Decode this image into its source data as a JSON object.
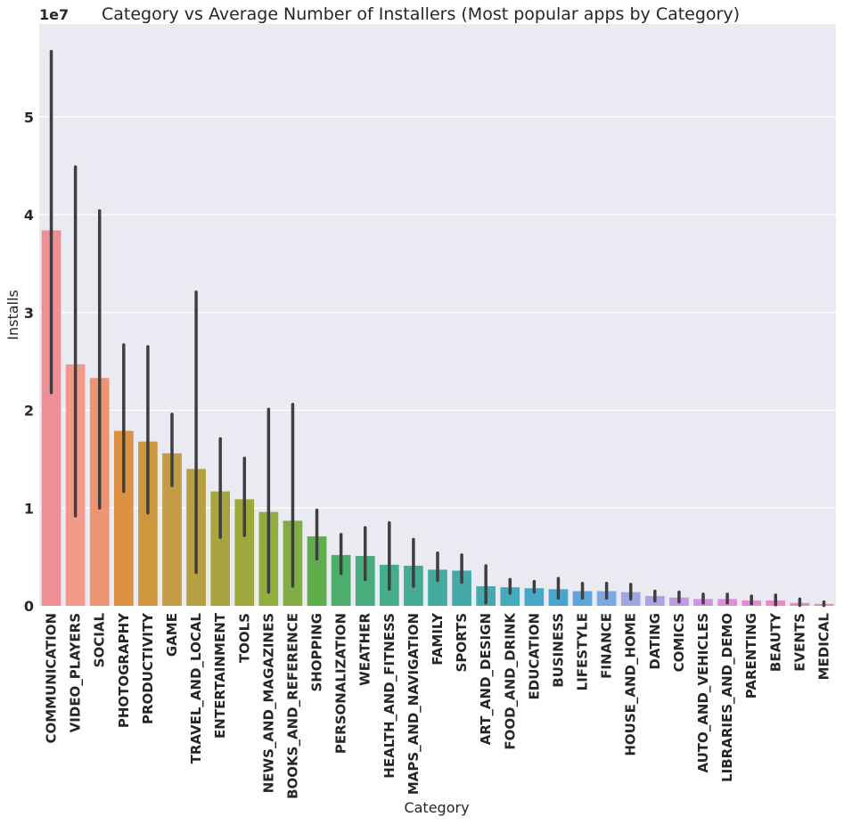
{
  "chart_data": {
    "type": "bar",
    "title": "Category vs Average Number of Installers (Most popular apps by Category)",
    "xlabel": "Category",
    "ylabel": "Installs",
    "y_multiplier_label": "1e7",
    "y_scale": 10000000,
    "ylim": [
      0,
      5.95
    ],
    "yticks": [
      0,
      1,
      2,
      3,
      4,
      5
    ],
    "grid": true,
    "legend": "none",
    "categories": [
      "COMMUNICATION",
      "VIDEO_PLAYERS",
      "SOCIAL",
      "PHOTOGRAPHY",
      "PRODUCTIVITY",
      "GAME",
      "TRAVEL_AND_LOCAL",
      "ENTERTAINMENT",
      "TOOLS",
      "NEWS_AND_MAGAZINES",
      "BOOKS_AND_REFERENCE",
      "SHOPPING",
      "PERSONALIZATION",
      "WEATHER",
      "HEALTH_AND_FITNESS",
      "MAPS_AND_NAVIGATION",
      "FAMILY",
      "SPORTS",
      "ART_AND_DESIGN",
      "FOOD_AND_DRINK",
      "EDUCATION",
      "BUSINESS",
      "LIFESTYLE",
      "FINANCE",
      "HOUSE_AND_HOME",
      "DATING",
      "COMICS",
      "AUTO_AND_VEHICLES",
      "LIBRARIES_AND_DEMO",
      "PARENTING",
      "BEAUTY",
      "EVENTS",
      "MEDICAL"
    ],
    "values": [
      3.84,
      2.47,
      2.33,
      1.79,
      1.68,
      1.56,
      1.4,
      1.17,
      1.09,
      0.96,
      0.87,
      0.71,
      0.52,
      0.51,
      0.42,
      0.41,
      0.37,
      0.36,
      0.2,
      0.19,
      0.18,
      0.17,
      0.15,
      0.15,
      0.14,
      0.1,
      0.085,
      0.07,
      0.07,
      0.055,
      0.055,
      0.03,
      0.02
    ],
    "ci_low": [
      2.18,
      0.92,
      1.0,
      1.17,
      0.95,
      1.23,
      0.34,
      0.7,
      0.72,
      0.14,
      0.2,
      0.48,
      0.33,
      0.27,
      0.17,
      0.2,
      0.26,
      0.24,
      0.03,
      0.13,
      0.14,
      0.08,
      0.08,
      0.08,
      0.07,
      0.05,
      0.04,
      0.03,
      0.03,
      0.02,
      0.01,
      0.005,
      0.003
    ],
    "ci_high": [
      5.67,
      4.49,
      4.04,
      2.67,
      2.65,
      1.96,
      3.21,
      1.71,
      1.51,
      2.01,
      2.06,
      0.98,
      0.73,
      0.8,
      0.85,
      0.68,
      0.54,
      0.52,
      0.41,
      0.27,
      0.25,
      0.28,
      0.23,
      0.23,
      0.22,
      0.15,
      0.14,
      0.12,
      0.12,
      0.1,
      0.11,
      0.07,
      0.04
    ],
    "colors": [
      "#f08f93",
      "#f39b8a",
      "#ed9470",
      "#dc9143",
      "#ce973e",
      "#c49c48",
      "#b6a042",
      "#a9a43f",
      "#9ea73a",
      "#92ad3e",
      "#82ac45",
      "#5fae4c",
      "#4cae6a",
      "#48ad7c",
      "#47ac8b",
      "#46ab95",
      "#46ab9f",
      "#45aaa7",
      "#44aab0",
      "#44aabc",
      "#45a9c5",
      "#48a6cd",
      "#5ba6dd",
      "#7da8e2",
      "#9ea6e4",
      "#b2a0e4",
      "#c29ae3",
      "#d093e0",
      "#dc8fdd",
      "#e68cd4",
      "#e989c8",
      "#ec89bb",
      "#ef8aa8"
    ],
    "error_bar_color": "#3f3f3f",
    "background_color": "#eaeaf2",
    "grid_color": "#ffffff"
  }
}
